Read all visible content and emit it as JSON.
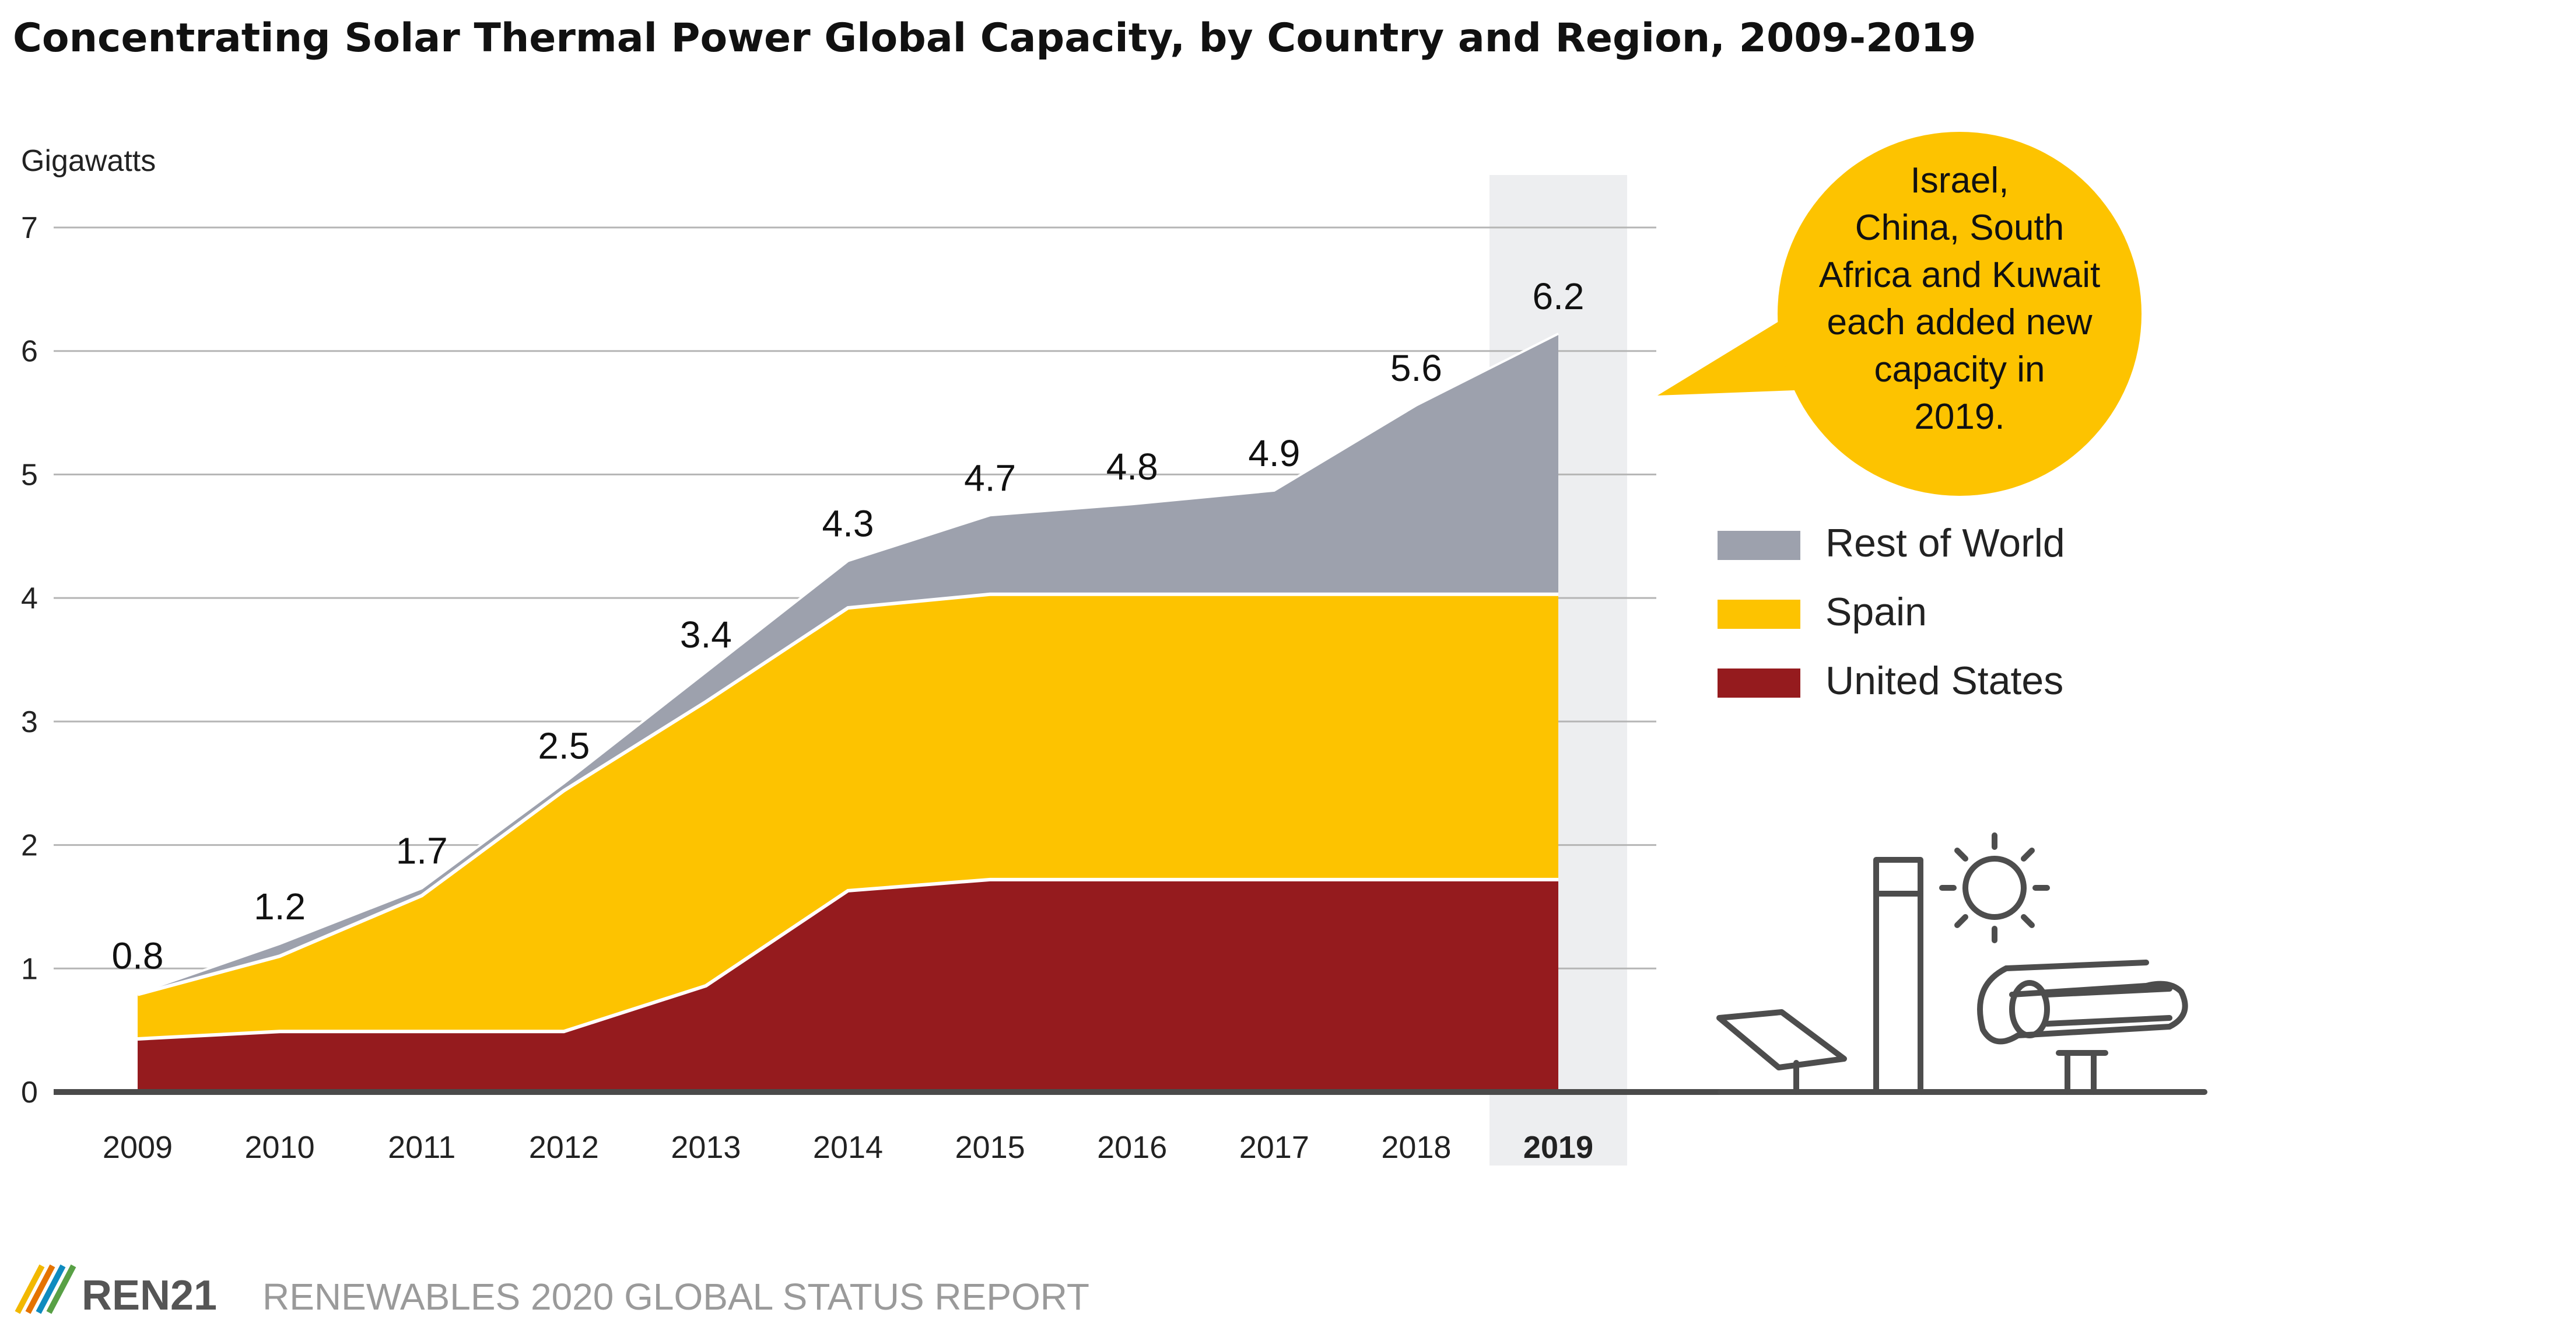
{
  "chart_data": {
    "type": "area",
    "title": "Concentrating Solar Thermal Power Global Capacity, by Country and Region, 2009-2019",
    "ylabel": "Gigawatts",
    "xlabel": "",
    "ylim": [
      0,
      7
    ],
    "y_ticks": [
      "0",
      "1",
      "2",
      "3",
      "4",
      "5",
      "6",
      "7"
    ],
    "categories": [
      "2009",
      "2010",
      "2011",
      "2012",
      "2013",
      "2014",
      "2015",
      "2016",
      "2017",
      "2018",
      "2019"
    ],
    "highlight_category": "2019",
    "stacked": true,
    "series": [
      {
        "name": "United States",
        "color": "#951b1e",
        "values": [
          0.43,
          0.49,
          0.49,
          0.49,
          0.86,
          1.63,
          1.72,
          1.72,
          1.72,
          1.72,
          1.72
        ]
      },
      {
        "name": "Spain",
        "color": "#fdc300",
        "values": [
          0.36,
          0.61,
          1.1,
          1.95,
          2.3,
          2.29,
          2.31,
          2.31,
          2.31,
          2.31,
          2.31
        ]
      },
      {
        "name": "Rest of World",
        "color": "#9da1ad",
        "values": [
          0.01,
          0.1,
          0.06,
          0.06,
          0.24,
          0.38,
          0.64,
          0.73,
          0.84,
          1.53,
          2.11
        ]
      }
    ],
    "totals": [
      "0.8",
      "1.2",
      "1.7",
      "2.5",
      "3.4",
      "4.3",
      "4.7",
      "4.8",
      "4.9",
      "5.6",
      "6.2"
    ],
    "legend_order": [
      "Rest of World",
      "Spain",
      "United States"
    ],
    "legend_position": "right",
    "grid": true,
    "annotation": "Israel, China, South Africa and Kuwait each added new capacity in 2019."
  },
  "callout_lines": [
    "Israel,",
    "China, South",
    "Africa and Kuwait",
    "each added new",
    "capacity in",
    "2019."
  ],
  "callout_color": "#fdc300",
  "footer": {
    "brand": "REN21",
    "report": "RENEWABLES 2020 GLOBAL STATUS REPORT"
  },
  "icons": [
    "ren21-logo-icon",
    "solar-panel-icon",
    "solar-tower-icon",
    "sun-icon",
    "parabolic-trough-icon"
  ]
}
